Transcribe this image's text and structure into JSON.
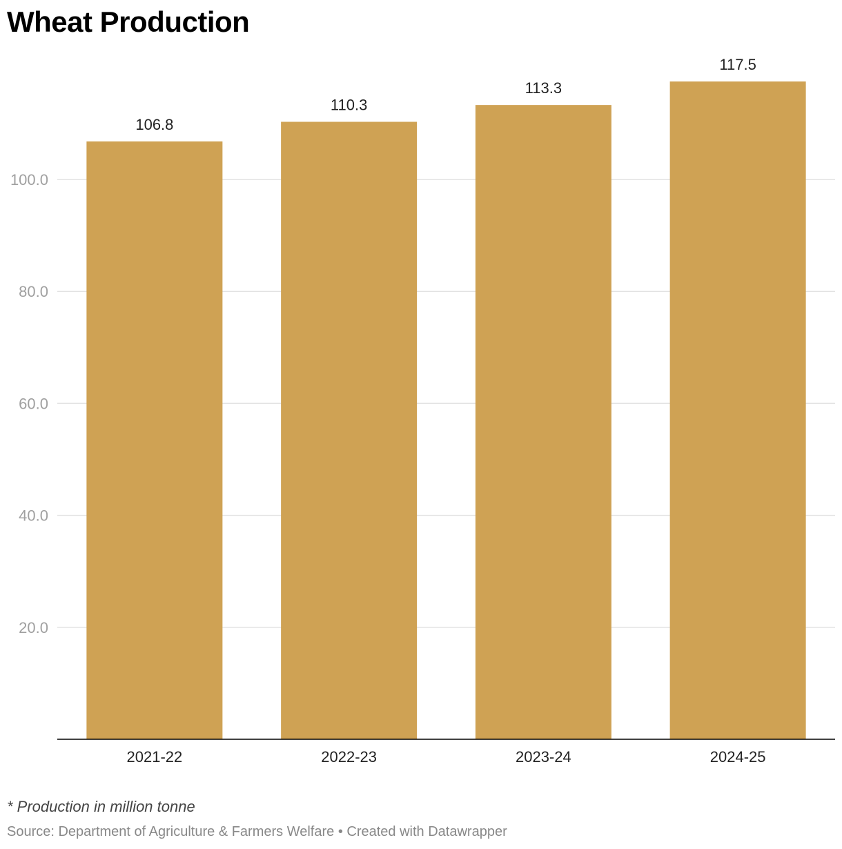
{
  "title": "Wheat Production",
  "note": "* Production in million tonne",
  "footer": {
    "source": "Source: Department of Agriculture & Farmers Welfare",
    "separator": " • ",
    "credit": "Created with Datawrapper"
  },
  "colors": {
    "bar": "#cfa254",
    "grid": "#e2e2e2",
    "axis": "#000000",
    "tick_label": "#a0a0a0",
    "category_label": "#222222",
    "value_label": "#222222"
  },
  "chart_data": {
    "type": "bar",
    "categories": [
      "2021-22",
      "2022-23",
      "2023-24",
      "2024-25"
    ],
    "values": [
      106.8,
      110.3,
      113.3,
      117.5
    ],
    "value_labels": [
      "106.8",
      "110.3",
      "113.3",
      "117.5"
    ],
    "y_ticks": [
      20,
      40,
      60,
      80,
      100
    ],
    "y_tick_labels": [
      "20.0",
      "40.0",
      "60.0",
      "80.0",
      "100.0"
    ],
    "ylim": [
      0,
      125
    ],
    "grid": true,
    "legend": false
  }
}
